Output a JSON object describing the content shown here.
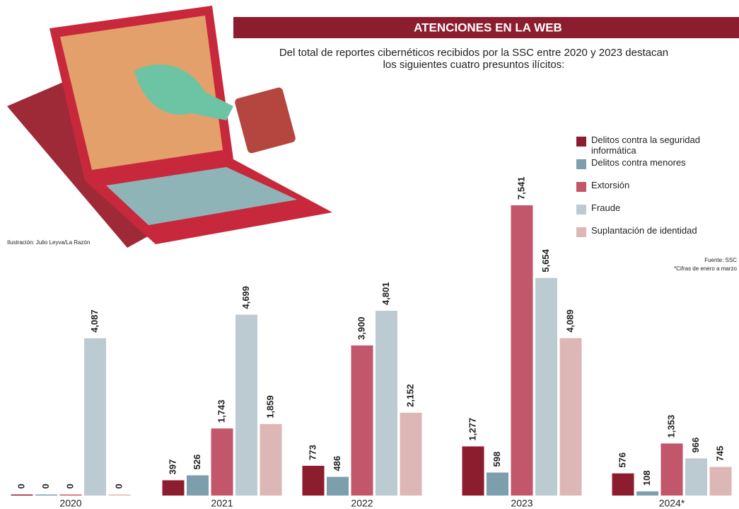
{
  "chart_data": {
    "type": "bar",
    "title": "ATENCIONES EN LA WEB",
    "subtitle": "Del total de reportes cibernéticos recibidos por la SSC entre 2020 y 2023 destacan los siguientes cuatro presuntos ilícitos:",
    "credit": "Ilustración: Julio Leyva/La Razón",
    "source": "Fuente: SSC",
    "note": "*Cifras de enero a marzo",
    "categories": [
      "2020",
      "2021",
      "2022",
      "2023",
      "2024*"
    ],
    "series": [
      {
        "name": "Delitos contra la seguridad informática",
        "color": "#8c1d2e",
        "values": [
          0,
          397,
          773,
          1277,
          576
        ],
        "value_labels": [
          "0",
          "397",
          "773",
          "1,277",
          "576"
        ]
      },
      {
        "name": "Delitos contra menores",
        "color": "#7d9eac",
        "values": [
          0,
          526,
          486,
          598,
          108
        ],
        "value_labels": [
          "0",
          "526",
          "486",
          "598",
          "108"
        ]
      },
      {
        "name": "Extorsión",
        "color": "#c2576b",
        "values": [
          0,
          1743,
          3900,
          7541,
          1353
        ],
        "value_labels": [
          "0",
          "1,743",
          "3,900",
          "7,541",
          "1,353"
        ]
      },
      {
        "name": "Fraude",
        "color": "#bccbd1",
        "values": [
          4087,
          4699,
          4801,
          5654,
          966
        ],
        "value_labels": [
          "4,087",
          "4,699",
          "4,801",
          "5,654",
          "966"
        ]
      },
      {
        "name": "Suplantación de identidad",
        "color": "#ddb7b5",
        "values": [
          0,
          1859,
          2152,
          4089,
          745
        ],
        "value_labels": [
          "0",
          "1,859",
          "2,152",
          "4,089",
          "745"
        ]
      }
    ]
  }
}
